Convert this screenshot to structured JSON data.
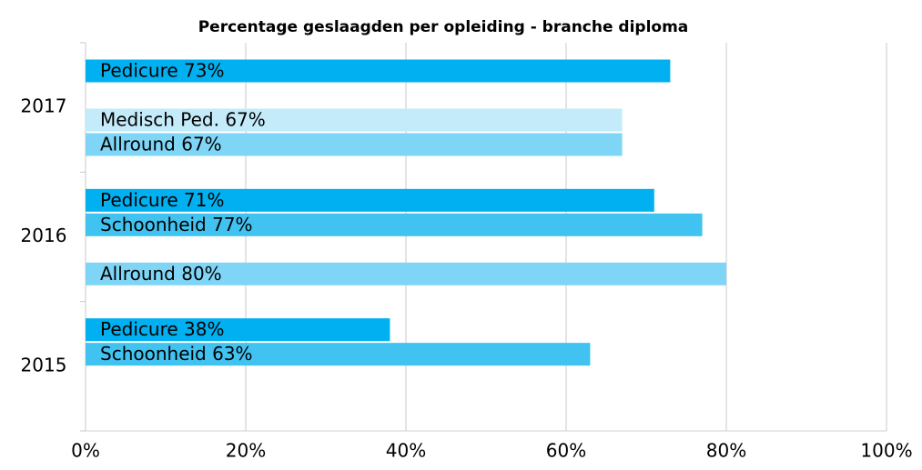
{
  "chart_data": {
    "type": "bar",
    "orientation": "horizontal",
    "title": "Percentage geslaagden per opleiding - branche diploma",
    "categories": [
      "2015",
      "2016",
      "2017"
    ],
    "series": [
      {
        "color": "#00b0f0",
        "values": [
          38,
          71,
          73
        ],
        "value_labels": [
          "Pedicure 38%",
          "Pedicure 71%",
          "Pedicure 73%"
        ]
      },
      {
        "color": "#41c3f1",
        "values": [
          63,
          77,
          null
        ],
        "value_labels": [
          "Schoonheid 63%",
          "Schoonheid 77%",
          null
        ]
      },
      {
        "color": "#c3ebfa",
        "values": [
          null,
          null,
          67
        ],
        "value_labels": [
          null,
          null,
          "Medisch Ped. 67%"
        ]
      },
      {
        "color": "#7fd5f6",
        "values": [
          null,
          80,
          67
        ],
        "value_labels": [
          null,
          "Allround 80%",
          "Allround 67%"
        ]
      }
    ],
    "xlim": [
      0,
      100
    ],
    "xticks": [
      {
        "value": 0,
        "label": "0%"
      },
      {
        "value": 20,
        "label": "20%"
      },
      {
        "value": 40,
        "label": "40%"
      },
      {
        "value": 60,
        "label": "60%"
      },
      {
        "value": 80,
        "label": "80%"
      },
      {
        "value": 100,
        "label": "100%"
      }
    ],
    "grid": true
  }
}
